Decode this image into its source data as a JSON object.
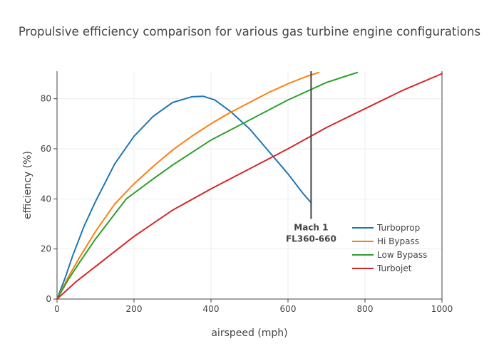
{
  "chart_data": {
    "type": "line",
    "title": "Propulsive efficiency comparison for various gas turbine engine configurations",
    "xlabel": "airspeed (mph)",
    "ylabel": "efficiency (%)",
    "xlim": [
      0,
      1000
    ],
    "ylim": [
      0,
      91
    ],
    "xticks": [
      0,
      200,
      400,
      600,
      800,
      1000
    ],
    "yticks": [
      0,
      20,
      40,
      60,
      80
    ],
    "grid": true,
    "legend_position": "bottom-right",
    "series": [
      {
        "name": "Turboprop",
        "color": "#1f77b4",
        "x": [
          0,
          20,
          40,
          70,
          100,
          150,
          200,
          250,
          300,
          350,
          380,
          410,
          450,
          500,
          550,
          600,
          640,
          660
        ],
        "y": [
          0,
          8,
          17,
          29,
          39,
          54,
          65,
          73,
          78.5,
          80.8,
          81,
          79.5,
          75,
          68,
          59,
          50,
          42,
          38.5
        ]
      },
      {
        "name": "Hi Bypass",
        "color": "#ff7f0e",
        "x": [
          0,
          30,
          60,
          100,
          150,
          200,
          250,
          300,
          350,
          400,
          450,
          500,
          550,
          600,
          650,
          680
        ],
        "y": [
          0,
          9,
          17,
          27,
          38,
          46,
          53,
          59.5,
          65,
          70,
          74.5,
          78.5,
          82.5,
          86,
          89,
          90.5
        ]
      },
      {
        "name": "Low Bypass",
        "color": "#2ca02c",
        "x": [
          0,
          30,
          60,
          100,
          150,
          180,
          250,
          300,
          350,
          400,
          450,
          500,
          550,
          600,
          650,
          700,
          750,
          780
        ],
        "y": [
          0,
          8,
          15,
          24,
          34,
          40,
          48,
          53.5,
          58.5,
          63.5,
          67.5,
          71.5,
          75.5,
          79.5,
          83,
          86.5,
          89,
          90.5
        ]
      },
      {
        "name": "Turbojet",
        "color": "#d62728",
        "x": [
          0,
          50,
          100,
          150,
          200,
          300,
          400,
          500,
          600,
          700,
          800,
          900,
          1000
        ],
        "y": [
          0,
          7,
          13,
          19,
          25,
          35.5,
          44,
          52,
          60,
          68.5,
          76,
          83.5,
          90
        ]
      }
    ],
    "annotations": [
      {
        "lines": [
          "Mach 1",
          "FL360-660"
        ],
        "x": 660,
        "y_top": 91,
        "y_bottom": 32
      }
    ]
  }
}
